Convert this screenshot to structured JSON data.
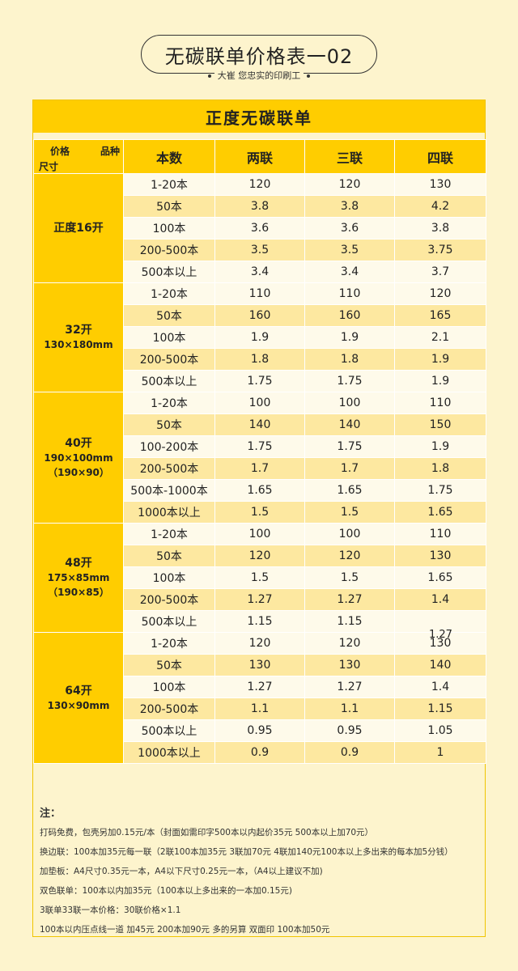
{
  "header": {
    "title": "无碳联单价格表一02",
    "subtitle": "大崔  您忠实的印刷工"
  },
  "banner": "正度无碳联单",
  "table": {
    "corner": {
      "price": "价格",
      "kind": "品种",
      "size": "尺寸"
    },
    "columns": [
      "本数",
      "两联",
      "三联",
      "四联"
    ],
    "groups": [
      {
        "size_lines": [
          "正度16开"
        ],
        "rows": [
          [
            "1-20本",
            "120",
            "120",
            "130"
          ],
          [
            "50本",
            "3.8",
            "3.8",
            "4.2"
          ],
          [
            "100本",
            "3.6",
            "3.6",
            "3.8"
          ],
          [
            "200-500本",
            "3.5",
            "3.5",
            "3.75"
          ],
          [
            "500本以上",
            "3.4",
            "3.4",
            "3.7"
          ]
        ]
      },
      {
        "size_lines": [
          "32开",
          "130×180mm"
        ],
        "rows": [
          [
            "1-20本",
            "110",
            "110",
            "120"
          ],
          [
            "50本",
            "160",
            "160",
            "165"
          ],
          [
            "100本",
            "1.9",
            "1.9",
            "2.1"
          ],
          [
            "200-500本",
            "1.8",
            "1.8",
            "1.9"
          ],
          [
            "500本以上",
            "1.75",
            "1.75",
            "1.9"
          ]
        ]
      },
      {
        "size_lines": [
          "40开",
          "190×100mm",
          "（190×90）"
        ],
        "rows": [
          [
            "1-20本",
            "100",
            "100",
            "110"
          ],
          [
            "50本",
            "140",
            "140",
            "150"
          ],
          [
            "100-200本",
            "1.75",
            "1.75",
            "1.9"
          ],
          [
            "200-500本",
            "1.7",
            "1.7",
            "1.8"
          ],
          [
            "500本-1000本",
            "1.65",
            "1.65",
            "1.75"
          ],
          [
            "1000本以上",
            "1.5",
            "1.5",
            "1.65"
          ]
        ]
      },
      {
        "size_lines": [
          "48开",
          "175×85mm",
          "（190×85）"
        ],
        "rows": [
          [
            "1-20本",
            "100",
            "100",
            "110"
          ],
          [
            "50本",
            "120",
            "120",
            "130"
          ],
          [
            "100本",
            "1.5",
            "1.5",
            "1.65"
          ],
          [
            "200-500本",
            "1.27",
            "1.27",
            "1.4"
          ],
          [
            "500本以上",
            "1.15",
            "1.15",
            ""
          ]
        ],
        "stray_value": "1.27"
      },
      {
        "size_lines": [
          "64开",
          "130×90mm"
        ],
        "rows": [
          [
            "1-20本",
            "120",
            "120",
            "130"
          ],
          [
            "50本",
            "130",
            "130",
            "140"
          ],
          [
            "100本",
            "1.27",
            "1.27",
            "1.4"
          ],
          [
            "200-500本",
            "1.1",
            "1.1",
            "1.15"
          ],
          [
            "500本以上",
            "0.95",
            "0.95",
            "1.05"
          ],
          [
            "1000本以上",
            "0.9",
            "0.9",
            "1"
          ]
        ]
      }
    ]
  },
  "notes": {
    "title": "注：",
    "lines": [
      "打码免费，包壳另加0.15元/本（封面如需印字500本以内起价35元 500本以上加70元）",
      "换边联：100本加35元每一联（2联100本加35元 3联加70元 4联加140元100本以上多出来的每本加5分钱）",
      "加垫板：A4尺寸0.35元一本，A4以下尺寸0.25元一本，（A4以上建议不加)",
      "双色联单：100本以内加35元（100本以上多出来的一本加0.15元)",
      "3联单33联一本价格：30联价格×1.1",
      "100本以内压点线一道 加45元 200本加90元 多的另算      双面印 100本加50元"
    ]
  }
}
